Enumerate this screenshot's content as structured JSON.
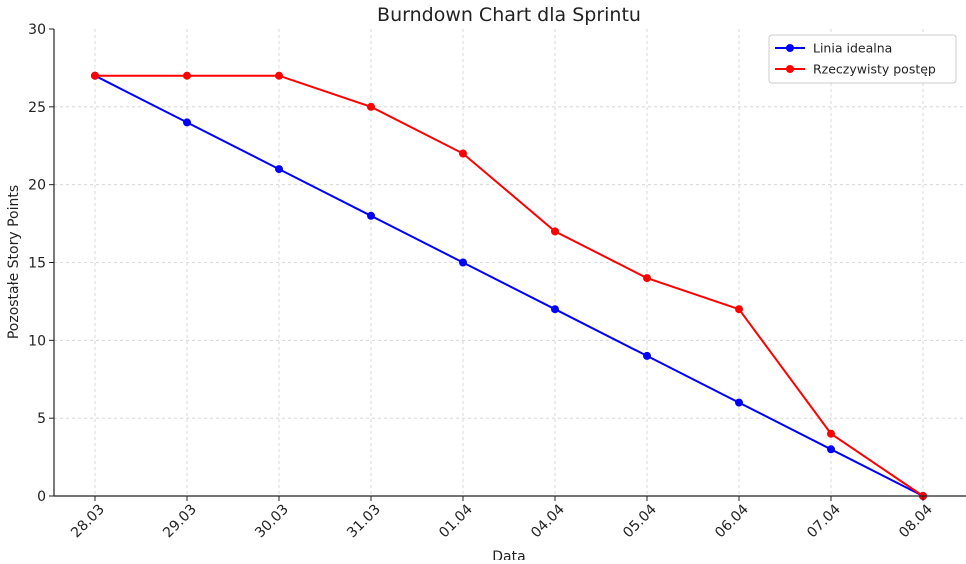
{
  "chart_data": {
    "type": "line",
    "title": "Burndown Chart dla Sprintu",
    "xlabel": "Data",
    "ylabel": "Pozostałe Story Points",
    "categories": [
      "28.03",
      "29.03",
      "30.03",
      "31.03",
      "01.04",
      "04.04",
      "05.04",
      "06.04",
      "07.04",
      "08.04"
    ],
    "ylim": [
      0,
      30
    ],
    "yticks": [
      "0",
      "5",
      "10",
      "15",
      "20",
      "25",
      "30"
    ],
    "grid": true,
    "legend_position": "top-right",
    "series": [
      {
        "name": "Linia idealna",
        "color": "#0000ff",
        "values": [
          27,
          24,
          21,
          18,
          15,
          12,
          9,
          6,
          3,
          0
        ]
      },
      {
        "name": "Rzeczywisty postęp",
        "color": "#ff0000",
        "values": [
          27,
          27,
          27,
          25,
          22,
          17,
          14,
          12,
          4,
          0
        ]
      }
    ]
  }
}
